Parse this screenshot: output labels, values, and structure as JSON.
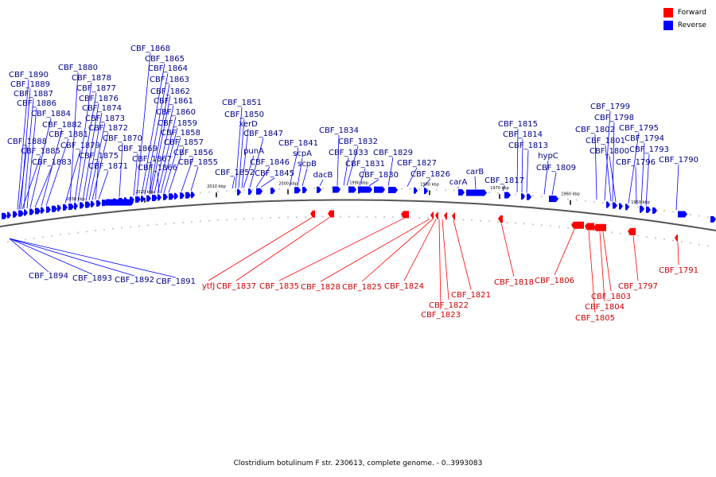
{
  "legend": {
    "forward_label": "Forward",
    "reverse_label": "Reverse",
    "forward_color": "#ff0000",
    "reverse_color": "#0000ff"
  },
  "caption": "Clostridium botulinum F str. 230613, complete genome. - 0..3993083",
  "colors": {
    "forward": "#ff0000",
    "reverse": "#0000ff",
    "backbone": "#555555",
    "text_forward": "#cc0000",
    "text_reverse": "#00008b"
  },
  "scale_labels": [
    "2030 kbp",
    "2020 kbp",
    "2010 kbp",
    "2000 kbp",
    "1990 kbp",
    "1980 kbp",
    "1970 kbp",
    "1960 kbp",
    "1950 kbp"
  ],
  "reverse_genes": [
    "CBF_1890",
    "CBF_1889",
    "CBF_1887",
    "CBF_1886",
    "CBF_1884",
    "CBF_1888",
    "CBF_1885",
    "CBF_1883",
    "CBF_1882",
    "CBF_1881",
    "CBF_1880",
    "CBF_1878",
    "CBF_1877",
    "CBF_1876",
    "CBF_1874",
    "CBF_1873",
    "CBF_1872",
    "CBF_1879",
    "CBF_1875",
    "CBF_1871",
    "CBF_1868",
    "CBF_1865",
    "CBF_1864",
    "CBF_1863",
    "CBF_1862",
    "CBF_1861",
    "CBF_1860",
    "CBF_1859",
    "CBF_1858",
    "CBF_1857",
    "CBF_1870",
    "CBF_1869",
    "CBF_1867",
    "CBF_1866",
    "CBF_1856",
    "CBF_1855",
    "CBF_1851",
    "CBF_1850",
    "xerD",
    "CBF_1847",
    "punA",
    "CBF_1846",
    "CBF_1845",
    "CBF_1852",
    "CBF_1841",
    "scpA",
    "scpB",
    "dacB",
    "CBF_1834",
    "CBF_1832",
    "CBF_1833",
    "CBF_1831",
    "CBF_1830",
    "CBF_1829",
    "CBF_1827",
    "CBF_1826",
    "carA",
    "carB",
    "CBF_1817",
    "CBF_1815",
    "CBF_1814",
    "CBF_1813",
    "hypC",
    "CBF_1809",
    "CBF_1799",
    "CBF_1798",
    "CBF_1802",
    "CBF_1795",
    "CBF_1801",
    "CBF_1794",
    "CBF_1800",
    "CBF_1793",
    "CBF_1796",
    "CBF_1790",
    "CBF_1894",
    "CBF_1893",
    "CBF_1892",
    "CBF_1891"
  ],
  "forward_genes": [
    "ytfJ",
    "CBF_1837",
    "CBF_1835",
    "CBF_1828",
    "CBF_1825",
    "CBF_1824",
    "CBF_1821",
    "CBF_1822",
    "CBF_1823",
    "CBF_1818",
    "CBF_1806",
    "CBF_1803",
    "CBF_1804",
    "CBF_1805",
    "CBF_1797",
    "CBF_1791"
  ]
}
